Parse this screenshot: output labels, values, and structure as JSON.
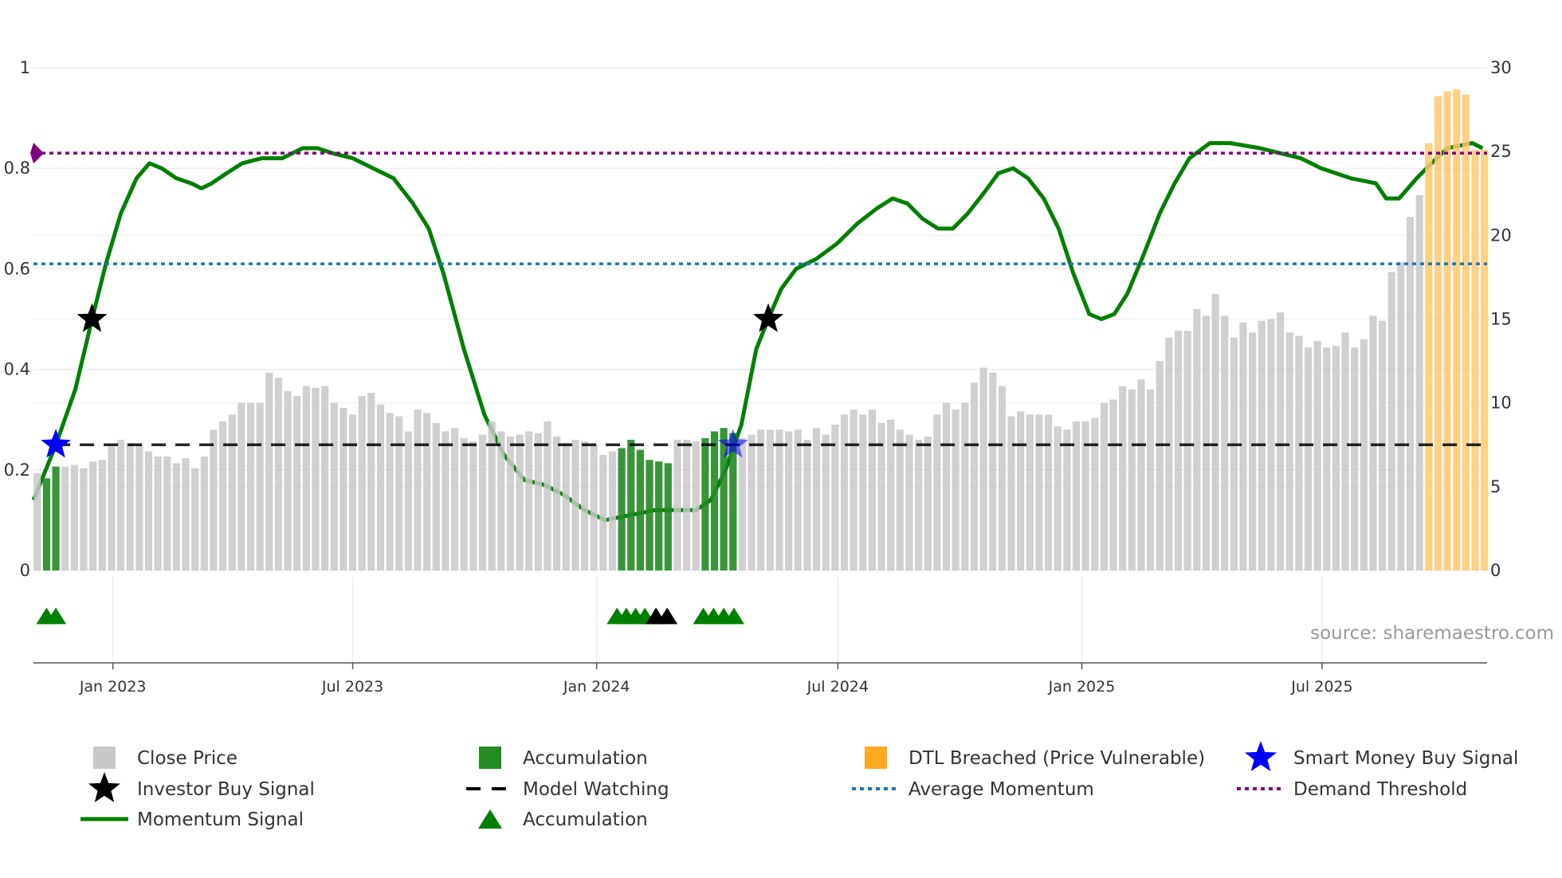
{
  "chart_data": {
    "type": "bar",
    "title": "",
    "x_unit": "week index",
    "left_axis": {
      "ylim": [
        0,
        1
      ],
      "ticks": [
        "0",
        "0.2",
        "0.4",
        "0.6",
        "0.8",
        "1"
      ],
      "tick_values": [
        0,
        0.2,
        0.4,
        0.6,
        0.8,
        1
      ]
    },
    "right_axis": {
      "ylim": [
        0,
        30
      ],
      "ticks": [
        "0",
        "5",
        "10",
        "15",
        "20",
        "25",
        "30"
      ],
      "tick_values": [
        0,
        5,
        10,
        15,
        20,
        25,
        30
      ]
    },
    "x_ticks": [
      {
        "label": "Jan 2023",
        "x": 8.15
      },
      {
        "label": "Jul 2023",
        "x": 34.0
      },
      {
        "label": "Jan 2024",
        "x": 60.3
      },
      {
        "label": "Jul 2024",
        "x": 86.3
      },
      {
        "label": "Jan 2025",
        "x": 112.6
      },
      {
        "label": "Jul 2025",
        "x": 138.5
      }
    ],
    "close_price": [
      5.8,
      5.5,
      6.2,
      6.2,
      6.3,
      6.1,
      6.5,
      6.6,
      7.4,
      7.8,
      7.6,
      7.5,
      7.1,
      6.8,
      6.8,
      6.4,
      6.7,
      6.1,
      6.8,
      8.4,
      8.9,
      9.3,
      10,
      10,
      10,
      11.8,
      11.5,
      10.7,
      10.4,
      11.0,
      10.9,
      11.0,
      10.0,
      9.7,
      9.3,
      10.4,
      10.6,
      9.9,
      9.4,
      9.2,
      8.3,
      9.6,
      9.4,
      8.8,
      8.3,
      8.5,
      7.9,
      7.7,
      8.1,
      8.9,
      8.3,
      8.0,
      8.1,
      8.3,
      8.2,
      8.9,
      8.0,
      7.6,
      7.8,
      7.7,
      7.5,
      6.9,
      7.1,
      7.3,
      7.8,
      7.2,
      6.6,
      6.5,
      6.4,
      7.8,
      7.8,
      7.7,
      7.9,
      8.3,
      8.5,
      8.2,
      7.9,
      8.1,
      8.4,
      8.4,
      8.4,
      8.3,
      8.4,
      7.8,
      8.5,
      8.1,
      8.7,
      9.3,
      9.6,
      9.3,
      9.6,
      8.8,
      9.0,
      8.4,
      8.1,
      7.8,
      8.0,
      9.3,
      10.0,
      9.6,
      10.0,
      11.2,
      12.1,
      11.8,
      11.0,
      9.2,
      9.5,
      9.3,
      9.3,
      9.3,
      8.6,
      8.4,
      8.9,
      8.9,
      9.1,
      10.0,
      10.2,
      11.0,
      10.8,
      11.4,
      10.8,
      12.5,
      13.9,
      14.3,
      14.3,
      15.6,
      15.2,
      16.5,
      15.2,
      13.9,
      14.8,
      14.2,
      14.9,
      15.0,
      15.4,
      14.2,
      14.0,
      13.3,
      13.7,
      13.3,
      13.4,
      14.2,
      13.3,
      13.8,
      15.2,
      14.9,
      17.8,
      18.4,
      21.1,
      22.4,
      25.5,
      28.3,
      28.6,
      28.7,
      28.4,
      25.1,
      25.1
    ],
    "accumulation_bar_indices": [
      1,
      2,
      63,
      64,
      65,
      66,
      67,
      68,
      72,
      73,
      74,
      75
    ],
    "dtl_breached_bar_indices": [
      150,
      151,
      152,
      153,
      154,
      155,
      156
    ],
    "momentum_signal": [
      [
        -0.4,
        0.14
      ],
      [
        2.0,
        0.25
      ],
      [
        4.1,
        0.36
      ],
      [
        5.9,
        0.5
      ],
      [
        7.4,
        0.61
      ],
      [
        9.0,
        0.71
      ],
      [
        10.7,
        0.78
      ],
      [
        12.1,
        0.81
      ],
      [
        13.4,
        0.8
      ],
      [
        15.0,
        0.78
      ],
      [
        16.6,
        0.77
      ],
      [
        17.7,
        0.76
      ],
      [
        18.8,
        0.77
      ],
      [
        20.4,
        0.79
      ],
      [
        22.1,
        0.81
      ],
      [
        24.2,
        0.82
      ],
      [
        26.4,
        0.82
      ],
      [
        28.6,
        0.84
      ],
      [
        30.2,
        0.84
      ],
      [
        31.8,
        0.83
      ],
      [
        34.0,
        0.82
      ],
      [
        36.2,
        0.8
      ],
      [
        38.4,
        0.78
      ],
      [
        40.5,
        0.73
      ],
      [
        42.2,
        0.68
      ],
      [
        43.8,
        0.59
      ],
      [
        46.0,
        0.44
      ],
      [
        48.2,
        0.31
      ],
      [
        50.3,
        0.23
      ],
      [
        52.5,
        0.18
      ],
      [
        54.7,
        0.17
      ],
      [
        56.8,
        0.15
      ],
      [
        59.0,
        0.12
      ],
      [
        61.2,
        0.1
      ],
      [
        63.9,
        0.11
      ],
      [
        66.6,
        0.12
      ],
      [
        68.8,
        0.12
      ],
      [
        71.0,
        0.12
      ],
      [
        72.6,
        0.14
      ],
      [
        74.2,
        0.2
      ],
      [
        75.9,
        0.29
      ],
      [
        77.5,
        0.44
      ],
      [
        78.8,
        0.5
      ],
      [
        80.2,
        0.56
      ],
      [
        81.8,
        0.6
      ],
      [
        84.0,
        0.62
      ],
      [
        86.2,
        0.65
      ],
      [
        88.4,
        0.69
      ],
      [
        90.5,
        0.72
      ],
      [
        92.2,
        0.74
      ],
      [
        93.8,
        0.73
      ],
      [
        95.4,
        0.7
      ],
      [
        97.1,
        0.68
      ],
      [
        98.7,
        0.68
      ],
      [
        100.3,
        0.71
      ],
      [
        102.0,
        0.75
      ],
      [
        103.6,
        0.79
      ],
      [
        105.2,
        0.8
      ],
      [
        106.8,
        0.78
      ],
      [
        108.5,
        0.74
      ],
      [
        110.1,
        0.68
      ],
      [
        111.7,
        0.59
      ],
      [
        113.4,
        0.51
      ],
      [
        114.7,
        0.5
      ],
      [
        116.1,
        0.51
      ],
      [
        117.5,
        0.55
      ],
      [
        119.3,
        0.63
      ],
      [
        121.0,
        0.71
      ],
      [
        122.6,
        0.77
      ],
      [
        124.2,
        0.82
      ],
      [
        126.4,
        0.85
      ],
      [
        128.6,
        0.85
      ],
      [
        131.8,
        0.84
      ],
      [
        134.0,
        0.83
      ],
      [
        136.2,
        0.82
      ],
      [
        138.4,
        0.8
      ],
      [
        141.6,
        0.78
      ],
      [
        144.3,
        0.77
      ],
      [
        145.4,
        0.74
      ],
      [
        146.8,
        0.74
      ],
      [
        148.7,
        0.78
      ],
      [
        150.3,
        0.81
      ],
      [
        152.0,
        0.84
      ],
      [
        154.7,
        0.85
      ],
      [
        155.8,
        0.84
      ]
    ],
    "model_watching": 0.25,
    "average_momentum": 0.61,
    "demand_threshold": 0.83,
    "investor_buy_signals": [
      [
        5.9,
        0.5
      ],
      [
        78.8,
        0.5
      ]
    ],
    "smart_money_buy_signals": [
      [
        2,
        0.25
      ],
      [
        75,
        0.25
      ]
    ],
    "accumulation_triangles_green": [
      1,
      2,
      62.5,
      63.5,
      64.5,
      65.5,
      71.8,
      72.9,
      74,
      75.1
    ],
    "accumulation_triangles_black": [
      66.7,
      67.9
    ],
    "colors": {
      "close": "#c8c8c8",
      "accum": "#228b22",
      "dtl": "#ffc870",
      "momentum": "#008000",
      "avg": "#1f77b4",
      "demand": "#800080",
      "smart": "#0000ff"
    },
    "legend": {
      "close_price": "Close Price",
      "accumulation_bar": "Accumulation",
      "dtl": "DTL Breached (Price Vulnerable)",
      "smart_money": "Smart Money Buy Signal",
      "investor_buy": "Investor Buy Signal",
      "model_watching": "Model Watching",
      "average_momentum": "Average Momentum",
      "demand_threshold": "Demand Threshold",
      "momentum": "Momentum Signal",
      "accumulation_marker": "Accumulation"
    },
    "source": "source: sharemaestro.com"
  }
}
